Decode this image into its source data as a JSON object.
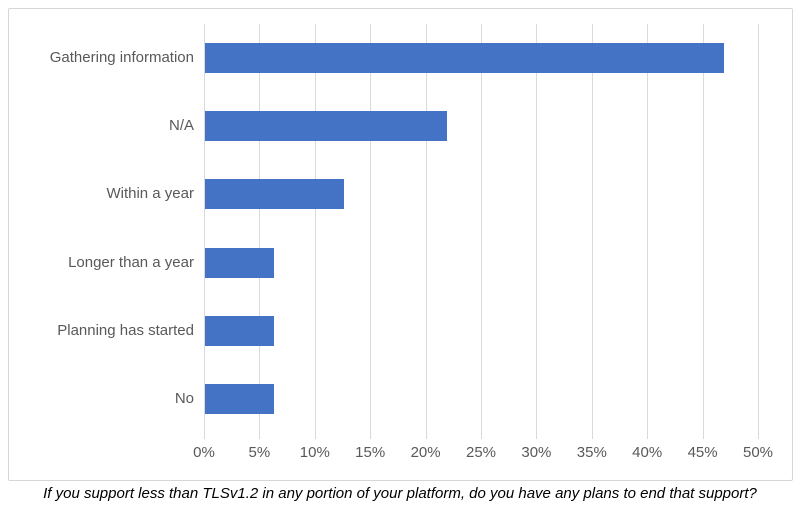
{
  "figure": {
    "caption": "If you support less than TLSv1.2 in any portion of your platform, do you have any plans to end that support?"
  },
  "chart_data": {
    "type": "bar",
    "orientation": "horizontal",
    "title": "",
    "xlabel": "",
    "ylabel": "",
    "categories": [
      "Gathering information",
      "N/A",
      "Within a year",
      "Longer than a year",
      "Planning has started",
      "No"
    ],
    "values": [
      46.875,
      21.875,
      12.5,
      6.25,
      6.25,
      6.25
    ],
    "unit": "%",
    "x_tick_labels": [
      "0%",
      "5%",
      "10%",
      "15%",
      "20%",
      "25%",
      "30%",
      "35%",
      "40%",
      "45%",
      "50%"
    ],
    "xlim": [
      0,
      50
    ],
    "grid": true,
    "legend": false,
    "colors": {
      "bar": "#4472C4",
      "gridline": "#D9D9D9",
      "axis_label": "#595959",
      "frame_border": "#D6D6D6",
      "caption_text": "#000000"
    }
  }
}
